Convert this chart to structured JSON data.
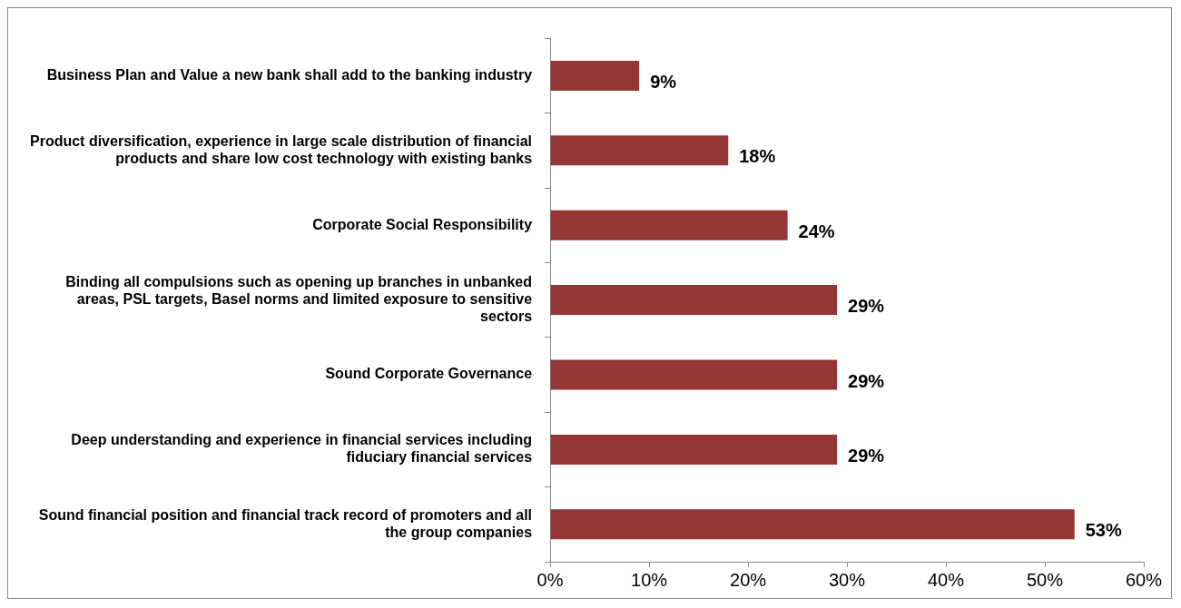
{
  "chart_data": {
    "type": "bar",
    "orientation": "horizontal",
    "categories": [
      "Business Plan and Value a new bank shall add to the banking industry",
      "Product diversification, experience in large scale distribution of financial products and share low cost technology with existing banks",
      "Corporate Social Responsibility",
      "Binding all compulsions such as opening up branches in unbanked areas, PSL targets, Basel norms and limited exposure to sensitive sectors",
      "Sound Corporate Governance",
      "Deep understanding and experience in financial services including fiduciary financial services",
      "Sound financial position and financial track record of promoters and all the group companies"
    ],
    "values": [
      9,
      18,
      24,
      29,
      29,
      29,
      53
    ],
    "value_labels": [
      "9%",
      "18%",
      "24%",
      "29%",
      "29%",
      "29%",
      "53%"
    ],
    "color": "#943634",
    "xlim": [
      0,
      60
    ],
    "xticks": [
      {
        "value": 0,
        "label": "0%"
      },
      {
        "value": 10,
        "label": "10%"
      },
      {
        "value": 20,
        "label": "20%"
      },
      {
        "value": 30,
        "label": "30%"
      },
      {
        "value": 40,
        "label": "40%"
      },
      {
        "value": 50,
        "label": "50%"
      },
      {
        "value": 60,
        "label": "60%"
      }
    ],
    "grid": false,
    "legend": false
  }
}
